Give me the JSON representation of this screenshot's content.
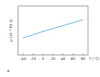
{
  "chart_data": {
    "type": "line",
    "xlabel": "T (°C)",
    "ylabel": "μ (10⁻⁶ Pa·s)",
    "annotation": "a",
    "x": [
      -40,
      -20,
      0,
      20,
      40,
      60,
      80
    ],
    "series": [
      {
        "name": "μ",
        "color": "#5ab4e0",
        "values": [
          15.2,
          16.2,
          17.2,
          18.1,
          19.0,
          19.9,
          20.8
        ]
      }
    ],
    "xlim": [
      -50,
      90
    ],
    "xticks": [
      -40,
      -20,
      0,
      20,
      40,
      60,
      80
    ],
    "ylim": [
      10,
      25
    ],
    "grid": false,
    "tick_labels": "x"
  }
}
